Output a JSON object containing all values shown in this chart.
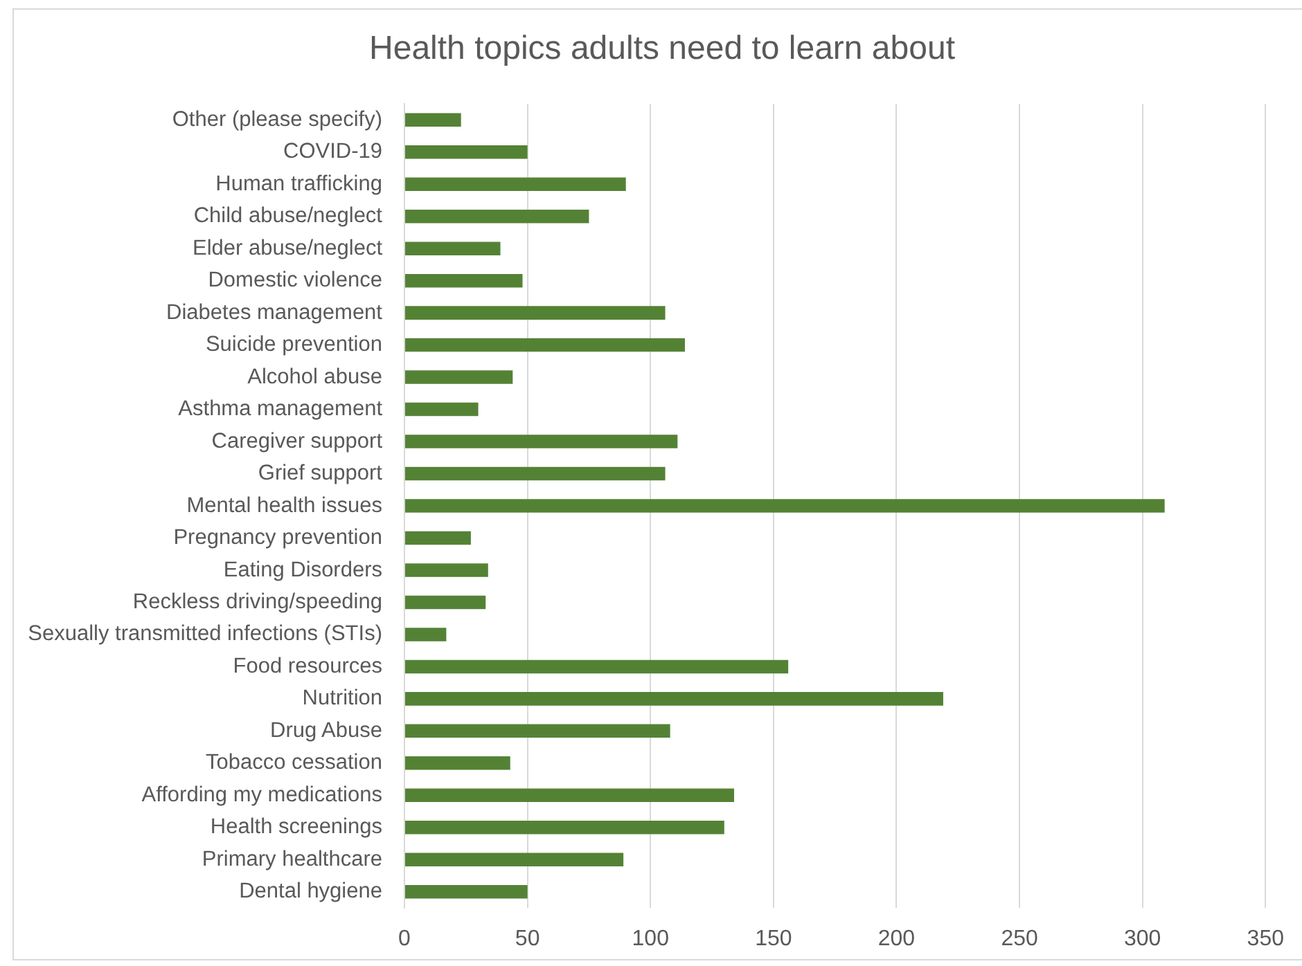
{
  "chart_data": {
    "type": "bar",
    "orientation": "horizontal",
    "title": "Health topics adults need to learn about",
    "categories": [
      "Other (please specify)",
      "COVID-19",
      "Human trafficking",
      "Child abuse/neglect",
      "Elder abuse/neglect",
      "Domestic violence",
      "Diabetes management",
      "Suicide prevention",
      "Alcohol abuse",
      "Asthma management",
      "Caregiver support",
      "Grief support",
      "Mental health issues",
      "Pregnancy prevention",
      "Eating Disorders",
      "Reckless driving/speeding",
      "Sexually transmitted infections (STIs)",
      "Food resources",
      "Nutrition",
      "Drug Abuse",
      "Tobacco cessation",
      "Affording my medications",
      "Health screenings",
      "Primary healthcare",
      "Dental hygiene"
    ],
    "values": [
      23,
      50,
      90,
      75,
      39,
      48,
      106,
      114,
      44,
      30,
      111,
      106,
      309,
      27,
      34,
      33,
      17,
      156,
      219,
      108,
      43,
      134,
      130,
      89,
      50
    ],
    "color": "#548235",
    "xlim": [
      0,
      350
    ],
    "xticks": [
      0,
      50,
      100,
      150,
      200,
      250,
      300,
      350
    ],
    "grid": "x"
  }
}
